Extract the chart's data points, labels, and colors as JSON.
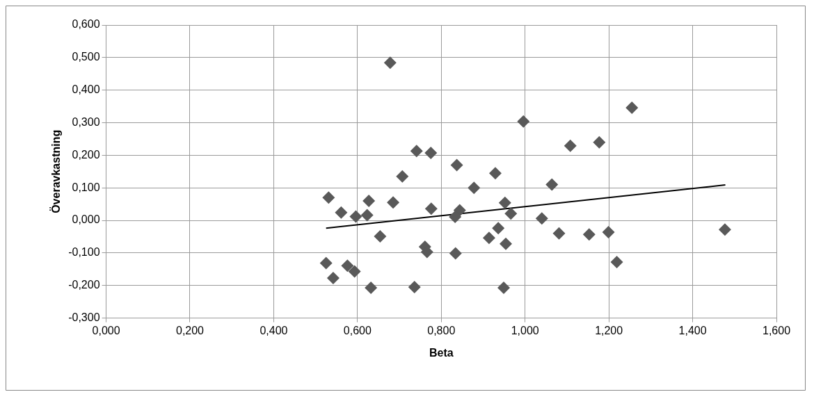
{
  "chart_data": {
    "type": "scatter",
    "xlabel": "Beta",
    "ylabel": "Överavkastning",
    "series": [
      {
        "marker": "diamond",
        "color": "#595959",
        "x": [
          0.678,
          0.996,
          0.741,
          0.775,
          0.837,
          0.929,
          0.707,
          0.878,
          1.064,
          0.531,
          0.627,
          0.685,
          0.776,
          0.844,
          0.952,
          0.561,
          0.596,
          0.623,
          0.833,
          0.966,
          1.04,
          1.081,
          0.936,
          0.654,
          0.914,
          0.954,
          0.761,
          0.766,
          0.834,
          0.525,
          0.576,
          0.593,
          0.542,
          0.632,
          0.736,
          0.949,
          1.255,
          1.108,
          1.177,
          1.153,
          1.199,
          1.219,
          1.477
        ],
        "values": [
          0.484,
          0.304,
          0.213,
          0.207,
          0.17,
          0.145,
          0.135,
          0.1,
          0.11,
          0.07,
          0.06,
          0.055,
          0.036,
          0.031,
          0.054,
          0.024,
          0.012,
          0.016,
          0.011,
          0.021,
          0.006,
          -0.04,
          -0.024,
          -0.049,
          -0.054,
          -0.072,
          -0.081,
          -0.097,
          -0.101,
          -0.131,
          -0.139,
          -0.157,
          -0.177,
          -0.207,
          -0.205,
          -0.207,
          0.346,
          0.229,
          0.24,
          -0.043,
          -0.036,
          -0.128,
          -0.028
        ]
      },
      {
        "type": "line",
        "color": "#000000",
        "x": [
          0.525,
          1.478
        ],
        "values": [
          -0.024,
          0.109
        ]
      }
    ],
    "grid": true,
    "legend": false,
    "xlim": [
      0,
      1.6
    ],
    "ylim": [
      -0.3,
      0.6
    ],
    "xticks": [
      {
        "value": 0,
        "label": "0,000"
      },
      {
        "value": 0.2,
        "label": "0,200"
      },
      {
        "value": 0.4,
        "label": "0,400"
      },
      {
        "value": 0.6,
        "label": "0,600"
      },
      {
        "value": 0.8,
        "label": "0,800"
      },
      {
        "value": 1.0,
        "label": "1,000"
      },
      {
        "value": 1.2,
        "label": "1,200"
      },
      {
        "value": 1.4,
        "label": "1,400"
      },
      {
        "value": 1.6,
        "label": "1,600"
      }
    ],
    "yticks": [
      {
        "value": -0.3,
        "label": "-0,300"
      },
      {
        "value": -0.2,
        "label": "-0,200"
      },
      {
        "value": -0.1,
        "label": "-0,100"
      },
      {
        "value": 0,
        "label": "0,000"
      },
      {
        "value": 0.1,
        "label": "0,100"
      },
      {
        "value": 0.2,
        "label": "0,200"
      },
      {
        "value": 0.3,
        "label": "0,300"
      },
      {
        "value": 0.4,
        "label": "0,400"
      },
      {
        "value": 0.5,
        "label": "0,500"
      },
      {
        "value": 0.6,
        "label": "0,600"
      }
    ]
  }
}
